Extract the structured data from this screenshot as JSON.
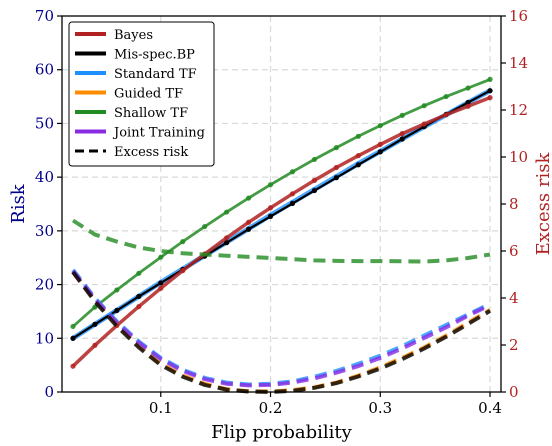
{
  "chart_data": {
    "type": "line",
    "xlabel": "Flip probability",
    "ylabel_left": "Risk",
    "ylabel_right": "Excess risk",
    "xlim": [
      0.01,
      0.41
    ],
    "ylim_left": [
      0,
      70
    ],
    "ylim_right": [
      0,
      16
    ],
    "xticks": [
      "0.1",
      "0.2",
      "0.3",
      "0.4"
    ],
    "xtick_values": [
      0.1,
      0.2,
      0.3,
      0.4
    ],
    "yticks_left": [
      "0",
      "10",
      "20",
      "30",
      "40",
      "50",
      "60",
      "70"
    ],
    "ytick_values_left": [
      0,
      10,
      20,
      30,
      40,
      50,
      60,
      70
    ],
    "yticks_right": [
      "0",
      "2",
      "4",
      "6",
      "8",
      "10",
      "12",
      "14",
      "16"
    ],
    "ytick_values_right": [
      0,
      2,
      4,
      6,
      8,
      10,
      12,
      14,
      16
    ],
    "grid": true,
    "legend_position": "top-left",
    "legend": [
      {
        "label": "Bayes",
        "color": "#b22222",
        "style": "solid"
      },
      {
        "label": "Mis-spec.BP",
        "color": "#000000",
        "style": "solid"
      },
      {
        "label": "Standard TF",
        "color": "#1e90ff",
        "style": "solid"
      },
      {
        "label": "Guided TF",
        "color": "#ff8c00",
        "style": "solid"
      },
      {
        "label": "Shallow TF",
        "color": "#228b22",
        "style": "solid"
      },
      {
        "label": "Joint Training",
        "color": "#8a2be2",
        "style": "solid"
      },
      {
        "label": "Excess risk",
        "color": "#000000",
        "style": "dashed"
      }
    ],
    "x": [
      0.02,
      0.04,
      0.06,
      0.08,
      0.1,
      0.12,
      0.14,
      0.16,
      0.18,
      0.2,
      0.22,
      0.24,
      0.26,
      0.28,
      0.3,
      0.32,
      0.34,
      0.36,
      0.38,
      0.4
    ],
    "series": [
      {
        "name": "Shallow TF",
        "axis": "left",
        "color": "#228b22",
        "style": "solid",
        "values": [
          12.2,
          15.8,
          19.0,
          22.1,
          25.1,
          28.0,
          30.8,
          33.5,
          36.1,
          38.6,
          41.0,
          43.3,
          45.5,
          47.6,
          49.6,
          51.5,
          53.3,
          55.0,
          56.6,
          58.2
        ]
      },
      {
        "name": "Standard TF",
        "axis": "left",
        "color": "#1e90ff",
        "style": "solid",
        "values": [
          10.0,
          12.6,
          15.2,
          17.8,
          20.4,
          22.9,
          25.4,
          27.9,
          30.4,
          32.9,
          35.3,
          37.7,
          40.1,
          42.5,
          44.8,
          47.1,
          49.4,
          51.6,
          53.9,
          56.1
        ]
      },
      {
        "name": "Mis-spec.BP",
        "axis": "left",
        "color": "#000000",
        "style": "solid",
        "values": [
          10.0,
          12.6,
          15.2,
          17.8,
          20.3,
          22.8,
          25.3,
          27.8,
          30.3,
          32.7,
          35.1,
          37.5,
          39.9,
          42.3,
          44.7,
          47.1,
          49.4,
          51.7,
          53.9,
          56.1
        ]
      },
      {
        "name": "Bayes",
        "axis": "left",
        "color": "#b22222",
        "style": "solid",
        "values": [
          4.8,
          8.7,
          12.4,
          15.9,
          19.3,
          22.6,
          25.7,
          28.7,
          31.6,
          34.3,
          36.9,
          39.4,
          41.8,
          44.0,
          46.1,
          48.1,
          49.9,
          51.6,
          53.2,
          54.8
        ]
      },
      {
        "name": "Excess risk (Shallow TF)",
        "axis": "right",
        "color": "#228b22",
        "style": "dashed",
        "values": [
          7.3,
          6.7,
          6.4,
          6.15,
          6.0,
          5.9,
          5.85,
          5.8,
          5.75,
          5.7,
          5.65,
          5.6,
          5.58,
          5.57,
          5.57,
          5.56,
          5.55,
          5.6,
          5.7,
          5.85
        ]
      },
      {
        "name": "Excess risk (Standard TF)",
        "axis": "right",
        "color": "#1e90ff",
        "style": "dashed",
        "values": [
          5.2,
          4.0,
          3.0,
          2.15,
          1.45,
          0.95,
          0.6,
          0.4,
          0.32,
          0.35,
          0.45,
          0.65,
          0.9,
          1.2,
          1.55,
          1.95,
          2.4,
          2.85,
          3.3,
          3.75
        ]
      },
      {
        "name": "Excess risk (Guided TF)",
        "axis": "right",
        "color": "#ff8c00",
        "style": "dashed",
        "values": [
          5.1,
          3.9,
          2.85,
          1.95,
          1.2,
          0.7,
          0.35,
          0.12,
          0.03,
          0.02,
          0.08,
          0.2,
          0.4,
          0.7,
          1.05,
          1.45,
          1.9,
          2.4,
          2.95,
          3.5
        ]
      },
      {
        "name": "Excess risk (Joint Training)",
        "axis": "right",
        "color": "#8a2be2",
        "style": "dashed",
        "values": [
          5.15,
          3.95,
          2.95,
          2.1,
          1.4,
          0.9,
          0.55,
          0.35,
          0.28,
          0.3,
          0.4,
          0.58,
          0.82,
          1.1,
          1.45,
          1.85,
          2.3,
          2.75,
          3.25,
          3.7
        ]
      },
      {
        "name": "Excess risk (Mis-spec.BP)",
        "axis": "right",
        "color": "#000000",
        "style": "dashed",
        "values": [
          5.1,
          3.85,
          2.8,
          1.9,
          1.15,
          0.65,
          0.3,
          0.1,
          0.02,
          0.0,
          0.05,
          0.18,
          0.38,
          0.66,
          1.0,
          1.4,
          1.85,
          2.35,
          2.9,
          3.45
        ]
      }
    ]
  }
}
